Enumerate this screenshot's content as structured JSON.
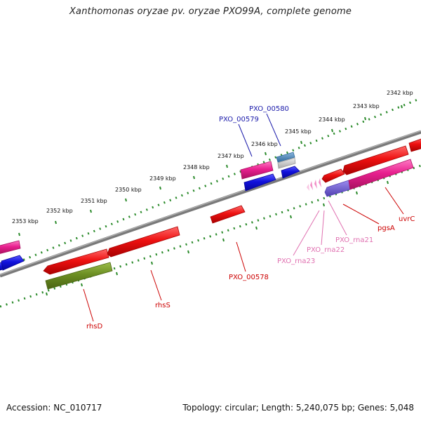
{
  "title": "Xanthomonas oryzae pv. oryzae PXO99A, complete genome",
  "footer": {
    "accession": "Accession: NC_010717",
    "topology": "Topology: circular; Length: 5,240,075 bp; Genes: 5,048"
  },
  "colors": {
    "backbone": "#7a7a7a",
    "tick_track": "#2a8a2a",
    "gene_red": "#ee1111",
    "gene_magenta": "#e8208f",
    "gene_blue": "#1111dd",
    "gene_olive": "#6b8e23",
    "gene_steel": "#4682b4",
    "gene_lightgray": "#c8c8c8",
    "gene_purple": "#6a5acd",
    "rna_pink": "#f080c0",
    "label_blue": "#1a1aaa",
    "label_red": "#cc0000",
    "label_pink": "#e070b0"
  },
  "ruler": {
    "labels": [
      "2353 kbp",
      "2352 kbp",
      "2351 kbp",
      "2350 kbp",
      "2349 kbp",
      "2348 kbp",
      "2347 kbp",
      "2346 kbp",
      "2345 kbp",
      "2344 kbp",
      "2343 kbp",
      "2342 kbp"
    ]
  },
  "genes": [
    {
      "name": "rhsD",
      "label_color": "label_red"
    },
    {
      "name": "rhsS",
      "label_color": "label_red"
    },
    {
      "name": "PXO_00578",
      "label_color": "label_red"
    },
    {
      "name": "PXO_00579",
      "label_color": "label_blue"
    },
    {
      "name": "PXO_00580",
      "label_color": "label_blue"
    },
    {
      "name": "PXO_rna23",
      "label_color": "label_pink"
    },
    {
      "name": "PXO_rna22",
      "label_color": "label_pink"
    },
    {
      "name": "PXO_rna21",
      "label_color": "label_pink"
    },
    {
      "name": "pgsA",
      "label_color": "label_red"
    },
    {
      "name": "uvrC",
      "label_color": "label_red"
    }
  ]
}
